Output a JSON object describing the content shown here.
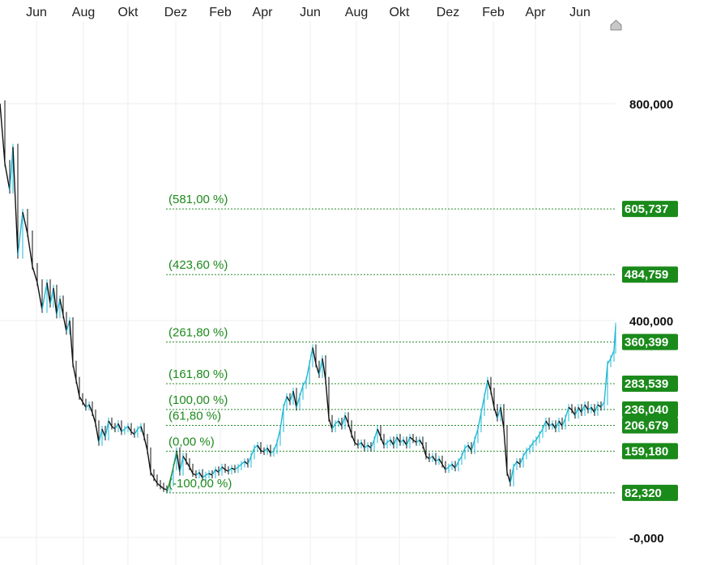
{
  "chart_data": {
    "type": "candlestick",
    "x_tick_labels": [
      "Jun",
      "Aug",
      "Okt",
      "Dez",
      "Feb",
      "Apr",
      "Jun",
      "Aug",
      "Okt",
      "Dez",
      "Feb",
      "Apr",
      "Jun"
    ],
    "y_tick_labels": [
      "800,000",
      "400,000",
      "-0,000"
    ],
    "y_ticks": [
      800,
      400,
      0
    ],
    "ylim": [
      -20,
      1000
    ],
    "grid": true,
    "colors": {
      "up": "#22b8d6",
      "down": "#111111",
      "fib": "#2a8a2a",
      "badge": "#1a8a1a"
    },
    "price_path": [
      [
        0,
        800
      ],
      [
        6,
        690
      ],
      [
        12,
        640
      ],
      [
        16,
        720
      ],
      [
        22,
        520
      ],
      [
        28,
        600
      ],
      [
        34,
        560
      ],
      [
        40,
        500
      ],
      [
        46,
        470
      ],
      [
        52,
        420
      ],
      [
        58,
        470
      ],
      [
        62,
        430
      ],
      [
        66,
        460
      ],
      [
        70,
        410
      ],
      [
        74,
        440
      ],
      [
        78,
        410
      ],
      [
        82,
        380
      ],
      [
        86,
        400
      ],
      [
        90,
        320
      ],
      [
        94,
        290
      ],
      [
        98,
        260
      ],
      [
        102,
        250
      ],
      [
        106,
        240
      ],
      [
        110,
        245
      ],
      [
        114,
        230
      ],
      [
        118,
        210
      ],
      [
        122,
        175
      ],
      [
        126,
        200
      ],
      [
        130,
        185
      ],
      [
        134,
        215
      ],
      [
        138,
        205
      ],
      [
        142,
        200
      ],
      [
        146,
        210
      ],
      [
        150,
        195
      ],
      [
        154,
        200
      ],
      [
        158,
        205
      ],
      [
        162,
        195
      ],
      [
        166,
        190
      ],
      [
        170,
        200
      ],
      [
        174,
        205
      ],
      [
        178,
        185
      ],
      [
        182,
        160
      ],
      [
        186,
        120
      ],
      [
        190,
        110
      ],
      [
        194,
        100
      ],
      [
        198,
        95
      ],
      [
        202,
        90
      ],
      [
        206,
        88
      ],
      [
        210,
        100
      ],
      [
        214,
        130
      ],
      [
        218,
        160
      ],
      [
        222,
        120
      ],
      [
        226,
        150
      ],
      [
        230,
        140
      ],
      [
        234,
        130
      ],
      [
        238,
        118
      ],
      [
        242,
        115
      ],
      [
        246,
        120
      ],
      [
        250,
        110
      ],
      [
        254,
        115
      ],
      [
        258,
        118
      ],
      [
        262,
        115
      ],
      [
        266,
        125
      ],
      [
        270,
        120
      ],
      [
        274,
        130
      ],
      [
        278,
        125
      ],
      [
        282,
        122
      ],
      [
        286,
        128
      ],
      [
        290,
        125
      ],
      [
        294,
        130
      ],
      [
        298,
        135
      ],
      [
        302,
        140
      ],
      [
        306,
        135
      ],
      [
        310,
        150
      ],
      [
        314,
        165
      ],
      [
        318,
        170
      ],
      [
        322,
        160
      ],
      [
        326,
        158
      ],
      [
        330,
        165
      ],
      [
        334,
        155
      ],
      [
        338,
        160
      ],
      [
        342,
        175
      ],
      [
        346,
        200
      ],
      [
        350,
        240
      ],
      [
        354,
        260
      ],
      [
        358,
        250
      ],
      [
        362,
        270
      ],
      [
        366,
        240
      ],
      [
        370,
        260
      ],
      [
        374,
        280
      ],
      [
        378,
        290
      ],
      [
        382,
        320
      ],
      [
        386,
        350
      ],
      [
        390,
        320
      ],
      [
        394,
        300
      ],
      [
        398,
        330
      ],
      [
        402,
        290
      ],
      [
        406,
        220
      ],
      [
        410,
        200
      ],
      [
        414,
        210
      ],
      [
        418,
        215
      ],
      [
        422,
        205
      ],
      [
        426,
        225
      ],
      [
        430,
        210
      ],
      [
        434,
        190
      ],
      [
        438,
        175
      ],
      [
        442,
        170
      ],
      [
        446,
        175
      ],
      [
        450,
        165
      ],
      [
        454,
        170
      ],
      [
        458,
        165
      ],
      [
        462,
        180
      ],
      [
        466,
        200
      ],
      [
        470,
        185
      ],
      [
        474,
        170
      ],
      [
        478,
        175
      ],
      [
        482,
        180
      ],
      [
        486,
        170
      ],
      [
        490,
        185
      ],
      [
        494,
        175
      ],
      [
        498,
        180
      ],
      [
        502,
        170
      ],
      [
        506,
        185
      ],
      [
        510,
        180
      ],
      [
        514,
        175
      ],
      [
        518,
        180
      ],
      [
        522,
        170
      ],
      [
        526,
        150
      ],
      [
        530,
        145
      ],
      [
        534,
        150
      ],
      [
        538,
        140
      ],
      [
        542,
        145
      ],
      [
        546,
        135
      ],
      [
        550,
        125
      ],
      [
        554,
        130
      ],
      [
        558,
        135
      ],
      [
        562,
        128
      ],
      [
        566,
        140
      ],
      [
        570,
        150
      ],
      [
        574,
        165
      ],
      [
        578,
        170
      ],
      [
        582,
        160
      ],
      [
        586,
        180
      ],
      [
        590,
        200
      ],
      [
        594,
        230
      ],
      [
        598,
        260
      ],
      [
        602,
        290
      ],
      [
        606,
        270
      ],
      [
        610,
        240
      ],
      [
        614,
        220
      ],
      [
        618,
        240
      ],
      [
        622,
        200
      ],
      [
        626,
        120
      ],
      [
        630,
        100
      ],
      [
        634,
        130
      ],
      [
        638,
        140
      ],
      [
        642,
        135
      ],
      [
        646,
        150
      ],
      [
        650,
        160
      ],
      [
        654,
        165
      ],
      [
        658,
        175
      ],
      [
        662,
        180
      ],
      [
        666,
        190
      ],
      [
        670,
        200
      ],
      [
        674,
        215
      ],
      [
        678,
        205
      ],
      [
        682,
        210
      ],
      [
        686,
        200
      ],
      [
        690,
        215
      ],
      [
        694,
        205
      ],
      [
        698,
        220
      ],
      [
        702,
        240
      ],
      [
        706,
        235
      ],
      [
        710,
        225
      ],
      [
        714,
        240
      ],
      [
        718,
        230
      ],
      [
        722,
        245
      ],
      [
        726,
        235
      ],
      [
        730,
        240
      ],
      [
        734,
        230
      ],
      [
        738,
        245
      ],
      [
        742,
        240
      ],
      [
        746,
        250
      ],
      [
        750,
        320
      ],
      [
        754,
        330
      ],
      [
        758,
        345
      ],
      [
        760,
        390
      ]
    ],
    "fib_levels": [
      {
        "label": "(581,00 %)",
        "value": 605.737,
        "badge": "605,737"
      },
      {
        "label": "(423,60 %)",
        "value": 484.759,
        "badge": "484,759"
      },
      {
        "label": "(261,80 %)",
        "value": 360.399,
        "badge": "360,399"
      },
      {
        "label": "(161,80 %)",
        "value": 283.539,
        "badge": "283,539"
      },
      {
        "label": "(100,00 %)",
        "value": 236.04,
        "badge": "236,040"
      },
      {
        "label": "(61,80 %)",
        "value": 206.679,
        "badge": "206,679"
      },
      {
        "label": "(0,00 %)",
        "value": 159.18,
        "badge": "159,180"
      },
      {
        "label": "(-100,00 %)",
        "value": 82.32,
        "badge": "82,320"
      }
    ]
  }
}
